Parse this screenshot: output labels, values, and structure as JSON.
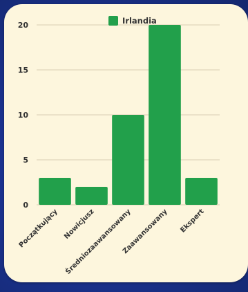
{
  "chart_data": {
    "type": "bar",
    "categories": [
      "Początkujący",
      "Nowicjusz",
      "Średniozaawansowany",
      "Zaawansowany",
      "Ekspert"
    ],
    "series": [
      {
        "name": "Irlandia",
        "values": [
          3,
          2,
          10,
          20,
          3
        ]
      }
    ],
    "yticks": [
      0,
      5,
      10,
      15,
      20
    ],
    "ylim": [
      0,
      21
    ],
    "grid": true,
    "legend_position": "top-center"
  },
  "colors": {
    "bar": "#22a04b",
    "background_card": "#fdf6dd",
    "page_background": "#1a2f86",
    "gridline": "#d9cfb2"
  }
}
